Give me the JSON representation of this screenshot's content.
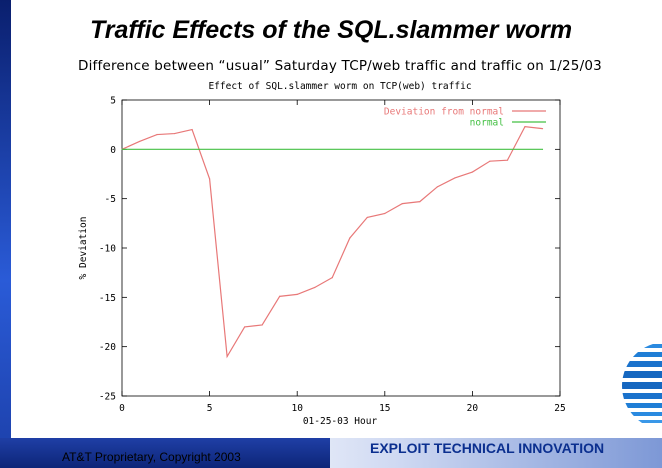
{
  "slide": {
    "title": "Traffic Effects of the SQL.slammer worm",
    "subtitle": "Difference between “usual” Saturday TCP/web traffic and traffic on 1/25/03",
    "footer_left": "AT&T Proprietary, Copyright 2003",
    "footer_right": "EXPLOIT TECHNICAL INNOVATION"
  },
  "chart_data": {
    "type": "line",
    "title": "Effect of SQL.slammer worm on TCP(web) traffic",
    "xlabel": "01-25-03 Hour",
    "ylabel": "% Deviation",
    "xlim": [
      0,
      25
    ],
    "ylim": [
      -25,
      5
    ],
    "x_ticks": [
      "0",
      "5",
      "10",
      "15",
      "20",
      "25"
    ],
    "y_ticks": [
      "5",
      "0",
      "-5",
      "-10",
      "-15",
      "-20",
      "-25"
    ],
    "legend_position": "top-right",
    "series": [
      {
        "name": "Deviation from normal",
        "color": "#e87878",
        "x": [
          0,
          1,
          2,
          3,
          4,
          5,
          6,
          7,
          8,
          9,
          10,
          11,
          12,
          13,
          14,
          15,
          16,
          17,
          18,
          19,
          20,
          21,
          22,
          23,
          24
        ],
        "y": [
          0,
          0.8,
          1.5,
          1.6,
          2.0,
          -3.0,
          -21.0,
          -18.0,
          -17.8,
          -14.9,
          -14.7,
          -14.0,
          -13.0,
          -9.0,
          -6.9,
          -6.5,
          -5.5,
          -5.3,
          -3.8,
          -2.9,
          -2.3,
          -1.2,
          -1.1,
          2.3,
          2.1
        ]
      },
      {
        "name": "normal",
        "color": "#44c044",
        "x": [
          0,
          24
        ],
        "y": [
          0,
          0
        ]
      }
    ]
  }
}
